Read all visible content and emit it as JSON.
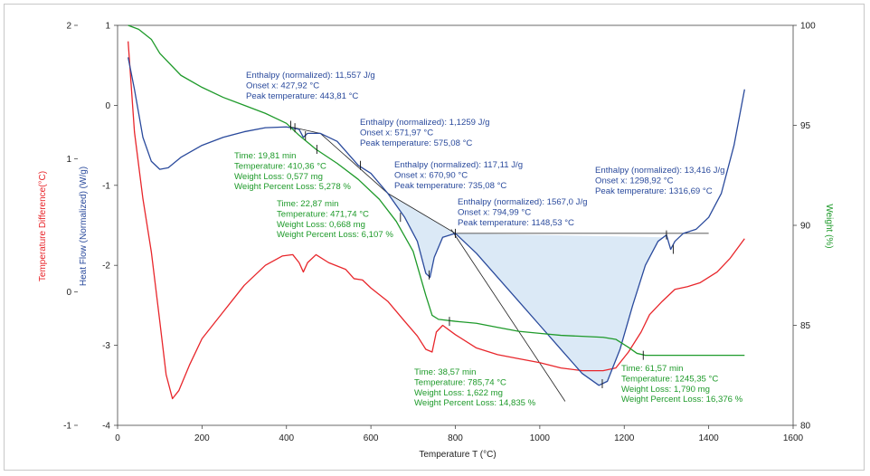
{
  "colors": {
    "temperature_difference": "#e8262b",
    "heat_flow": "#2a4a9c",
    "weight": "#1e9a2a",
    "shade": "#dbe9f6",
    "baseline": "#222222"
  },
  "chart_data": {
    "type": "line",
    "xlabel": "Temperature T (°C)",
    "xlim": [
      0,
      1600
    ],
    "x_ticks": [
      "0",
      "200",
      "400",
      "600",
      "800",
      "1000",
      "1200",
      "1400",
      "1600"
    ],
    "axes": [
      {
        "id": "temp_diff",
        "label": "Temperature Difference(°C)",
        "range": [
          -1,
          2
        ],
        "ticks": [
          "2",
          "1",
          "0",
          "-1"
        ],
        "color": "#e8262b"
      },
      {
        "id": "heat_flow",
        "label": "Heat Flow (Normalized) (W/g)",
        "range": [
          -4,
          1
        ],
        "ticks": [
          "1",
          "0",
          "-1",
          "-2",
          "-3",
          "-4"
        ],
        "color": "#2a4a9c"
      },
      {
        "id": "weight",
        "label": "Weight (%)",
        "range": [
          80,
          100
        ],
        "ticks": [
          "100",
          "95",
          "90",
          "85",
          "80"
        ],
        "color": "#1e9a2a"
      }
    ],
    "series": [
      {
        "axis": "temp_diff",
        "points": [
          [
            25,
            1.88
          ],
          [
            40,
            1.2
          ],
          [
            60,
            0.7
          ],
          [
            80,
            0.3
          ],
          [
            100,
            -0.22
          ],
          [
            115,
            -0.62
          ],
          [
            130,
            -0.8
          ],
          [
            145,
            -0.74
          ],
          [
            170,
            -0.55
          ],
          [
            200,
            -0.35
          ],
          [
            250,
            -0.15
          ],
          [
            300,
            0.05
          ],
          [
            350,
            0.2
          ],
          [
            390,
            0.27
          ],
          [
            415,
            0.28
          ],
          [
            430,
            0.22
          ],
          [
            440,
            0.15
          ],
          [
            450,
            0.22
          ],
          [
            470,
            0.28
          ],
          [
            500,
            0.22
          ],
          [
            540,
            0.17
          ],
          [
            560,
            0.1
          ],
          [
            580,
            0.09
          ],
          [
            600,
            0.03
          ],
          [
            640,
            -0.07
          ],
          [
            680,
            -0.22
          ],
          [
            710,
            -0.33
          ],
          [
            730,
            -0.43
          ],
          [
            745,
            -0.45
          ],
          [
            755,
            -0.3
          ],
          [
            770,
            -0.25
          ],
          [
            800,
            -0.32
          ],
          [
            850,
            -0.42
          ],
          [
            900,
            -0.47
          ],
          [
            950,
            -0.5
          ],
          [
            1000,
            -0.53
          ],
          [
            1050,
            -0.57
          ],
          [
            1100,
            -0.59
          ],
          [
            1150,
            -0.59
          ],
          [
            1180,
            -0.57
          ],
          [
            1210,
            -0.45
          ],
          [
            1240,
            -0.3
          ],
          [
            1260,
            -0.17
          ],
          [
            1290,
            -0.07
          ],
          [
            1320,
            0.02
          ],
          [
            1350,
            0.04
          ],
          [
            1380,
            0.07
          ],
          [
            1420,
            0.15
          ],
          [
            1450,
            0.25
          ],
          [
            1485,
            0.4
          ]
        ]
      },
      {
        "axis": "heat_flow",
        "points": [
          [
            25,
            0.6
          ],
          [
            40,
            0.2
          ],
          [
            60,
            -0.4
          ],
          [
            80,
            -0.7
          ],
          [
            100,
            -0.8
          ],
          [
            120,
            -0.78
          ],
          [
            150,
            -0.65
          ],
          [
            200,
            -0.5
          ],
          [
            250,
            -0.4
          ],
          [
            300,
            -0.33
          ],
          [
            350,
            -0.28
          ],
          [
            400,
            -0.27
          ],
          [
            430,
            -0.3
          ],
          [
            440,
            -0.4
          ],
          [
            450,
            -0.35
          ],
          [
            480,
            -0.35
          ],
          [
            520,
            -0.45
          ],
          [
            570,
            -0.75
          ],
          [
            600,
            -0.85
          ],
          [
            640,
            -1.1
          ],
          [
            680,
            -1.4
          ],
          [
            710,
            -1.7
          ],
          [
            730,
            -2.1
          ],
          [
            740,
            -2.15
          ],
          [
            750,
            -1.9
          ],
          [
            770,
            -1.65
          ],
          [
            800,
            -1.6
          ],
          [
            850,
            -1.85
          ],
          [
            900,
            -2.15
          ],
          [
            950,
            -2.45
          ],
          [
            1000,
            -2.75
          ],
          [
            1050,
            -3.05
          ],
          [
            1100,
            -3.35
          ],
          [
            1140,
            -3.5
          ],
          [
            1160,
            -3.45
          ],
          [
            1190,
            -3.05
          ],
          [
            1220,
            -2.5
          ],
          [
            1250,
            -2.0
          ],
          [
            1280,
            -1.7
          ],
          [
            1300,
            -1.62
          ],
          [
            1310,
            -1.8
          ],
          [
            1320,
            -1.7
          ],
          [
            1340,
            -1.6
          ],
          [
            1370,
            -1.55
          ],
          [
            1400,
            -1.4
          ],
          [
            1430,
            -1.1
          ],
          [
            1460,
            -0.5
          ],
          [
            1485,
            0.2
          ]
        ]
      },
      {
        "axis": "weight",
        "points": [
          [
            25,
            100
          ],
          [
            50,
            99.8
          ],
          [
            80,
            99.3
          ],
          [
            100,
            98.6
          ],
          [
            150,
            97.5
          ],
          [
            200,
            96.9
          ],
          [
            250,
            96.4
          ],
          [
            300,
            96
          ],
          [
            350,
            95.6
          ],
          [
            400,
            95.1
          ],
          [
            430,
            94.5
          ],
          [
            470,
            93.8
          ],
          [
            520,
            93.1
          ],
          [
            570,
            92.3
          ],
          [
            620,
            91.3
          ],
          [
            660,
            90.2
          ],
          [
            700,
            88.7
          ],
          [
            730,
            86.5
          ],
          [
            745,
            85.5
          ],
          [
            760,
            85.3
          ],
          [
            800,
            85.2
          ],
          [
            850,
            85.1
          ],
          [
            900,
            84.9
          ],
          [
            950,
            84.7
          ],
          [
            1000,
            84.6
          ],
          [
            1050,
            84.5
          ],
          [
            1100,
            84.45
          ],
          [
            1150,
            84.4
          ],
          [
            1180,
            84.3
          ],
          [
            1210,
            83.9
          ],
          [
            1230,
            83.6
          ],
          [
            1250,
            83.5
          ],
          [
            1300,
            83.5
          ],
          [
            1400,
            83.5
          ],
          [
            1485,
            83.5
          ]
        ]
      }
    ],
    "annotations": {
      "a1": [
        "Enthalpy (normalized): 11,557 J/g",
        "Onset x: 427,92 °C",
        "Peak temperature: 443,81 °C"
      ],
      "a2": [
        "Enthalpy (normalized): 1,1259 J/g",
        "Onset x: 571,97 °C",
        "Peak temperature: 575,08 °C"
      ],
      "a3": [
        "Enthalpy (normalized): 117,11 J/g",
        "Onset x: 670,90 °C",
        "Peak temperature: 735,08 °C"
      ],
      "a4": [
        "Enthalpy (normalized): 1567,0 J/g",
        "Onset x: 794,99 °C",
        "Peak temperature: 1148,53 °C"
      ],
      "a5": [
        "Enthalpy (normalized): 13,416 J/g",
        "Onset x: 1298,92 °C",
        "Peak temperature: 1316,69 °C"
      ],
      "w1": [
        "Time: 19,81 min",
        "Temperature: 410,36 °C",
        "Weight Loss: 0,577 mg",
        "Weight Percent Loss: 5,278 %"
      ],
      "w2": [
        "Time: 22,87 min",
        "Temperature: 471,74 °C",
        "Weight Loss: 0,668 mg",
        "Weight Percent Loss: 6,107 %"
      ],
      "w3": [
        "Time: 38,57 min",
        "Temperature: 785,74 °C",
        "Weight Loss: 1,622 mg",
        "Weight Percent Loss: 14,835 %"
      ],
      "w4": [
        "Time: 61,57 min",
        "Temperature: 1245,35 °C",
        "Weight Loss: 1,790 mg",
        "Weight Percent Loss: 16,376 %"
      ]
    }
  }
}
